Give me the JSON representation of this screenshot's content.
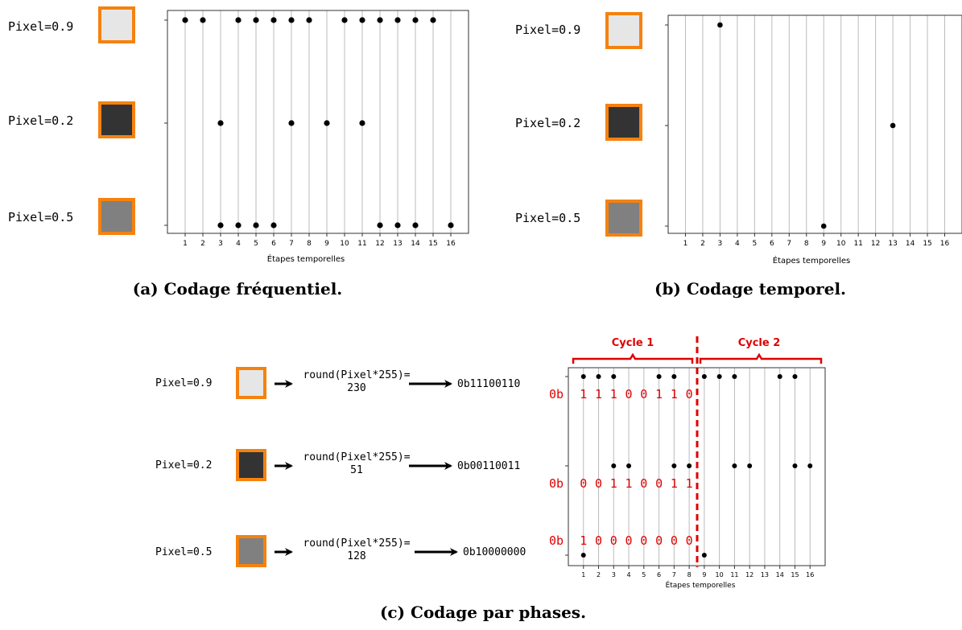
{
  "panels": {
    "a": {
      "caption": "(a) Codage fréquentiel.",
      "xlabel": "Étapes temporelles",
      "rows": [
        {
          "label": "Pixel=0.9",
          "gray": "#e6e6e6"
        },
        {
          "label": "Pixel=0.2",
          "gray": "#333333"
        },
        {
          "label": "Pixel=0.5",
          "gray": "#808080"
        }
      ]
    },
    "b": {
      "caption": "(b) Codage temporel.",
      "xlabel": "Étapes temporelles",
      "rows": [
        {
          "label": "Pixel=0.9",
          "gray": "#e6e6e6"
        },
        {
          "label": "Pixel=0.2",
          "gray": "#333333"
        },
        {
          "label": "Pixel=0.5",
          "gray": "#808080"
        }
      ]
    },
    "c": {
      "caption": "(c) Codage par phases.",
      "xlabel": "Étapes temporelles",
      "cycle1": "Cycle 1",
      "cycle2": "Cycle 2",
      "rows": [
        {
          "label": "Pixel=0.9",
          "gray": "#e6e6e6",
          "formula": "round(Pixel*255)=",
          "value": "230",
          "binary": "0b11100110",
          "prefix": "0b",
          "bits": [
            "1",
            "1",
            "1",
            "0",
            "0",
            "1",
            "1",
            "0"
          ]
        },
        {
          "label": "Pixel=0.2",
          "gray": "#333333",
          "formula": "round(Pixel*255)=",
          "value": "51",
          "binary": "0b00110011",
          "prefix": "0b",
          "bits": [
            "0",
            "0",
            "1",
            "1",
            "0",
            "0",
            "1",
            "1"
          ]
        },
        {
          "label": "Pixel=0.5",
          "gray": "#808080",
          "formula": "round(Pixel*255)=",
          "value": "128",
          "binary": "0b10000000",
          "prefix": "0b",
          "bits": [
            "1",
            "0",
            "0",
            "0",
            "0",
            "0",
            "0",
            "0"
          ]
        }
      ]
    }
  },
  "colors": {
    "border": "#f5820f",
    "annotation": "#e00000",
    "grid": "#bbbbbb",
    "spike": "#000000"
  },
  "chart_data": [
    {
      "type": "scatter",
      "title": "",
      "xlabel": "Étapes temporelles",
      "ylabel": "",
      "x_ticks": [
        "1",
        "2",
        "3",
        "4",
        "5",
        "6",
        "7",
        "8",
        "9",
        "10",
        "11",
        "12",
        "13",
        "14",
        "15",
        "16"
      ],
      "xlim": [
        0,
        17
      ],
      "grid": "vertical",
      "series": [
        {
          "name": "Pixel=0.9",
          "x": [
            1,
            2,
            4,
            5,
            6,
            7,
            8,
            10,
            11,
            12,
            13,
            14,
            15
          ]
        },
        {
          "name": "Pixel=0.2",
          "x": [
            3,
            7,
            9,
            11
          ]
        },
        {
          "name": "Pixel=0.5",
          "x": [
            3,
            4,
            5,
            6,
            12,
            13,
            14,
            16
          ]
        }
      ]
    },
    {
      "type": "scatter",
      "title": "",
      "xlabel": "Étapes temporelles",
      "ylabel": "",
      "x_ticks": [
        "1",
        "2",
        "3",
        "4",
        "5",
        "6",
        "7",
        "8",
        "9",
        "10",
        "11",
        "12",
        "13",
        "14",
        "15",
        "16"
      ],
      "xlim": [
        0,
        17
      ],
      "grid": "vertical",
      "series": [
        {
          "name": "Pixel=0.9",
          "x": [
            3
          ]
        },
        {
          "name": "Pixel=0.2",
          "x": [
            13
          ]
        },
        {
          "name": "Pixel=0.5",
          "x": [
            9
          ]
        }
      ]
    },
    {
      "type": "scatter",
      "title": "",
      "xlabel": "Étapes temporelles",
      "ylabel": "",
      "x_ticks": [
        "1",
        "2",
        "3",
        "4",
        "5",
        "6",
        "7",
        "8",
        "9",
        "10",
        "11",
        "12",
        "13",
        "14",
        "15",
        "16"
      ],
      "xlim": [
        0,
        17
      ],
      "grid": "vertical",
      "series": [
        {
          "name": "Pixel=0.9",
          "x": [
            1,
            2,
            3,
            6,
            7,
            9,
            10,
            11,
            14,
            15
          ]
        },
        {
          "name": "Pixel=0.2",
          "x": [
            3,
            4,
            7,
            8,
            11,
            12,
            15,
            16
          ]
        },
        {
          "name": "Pixel=0.5",
          "x": [
            1,
            9
          ]
        }
      ]
    }
  ]
}
